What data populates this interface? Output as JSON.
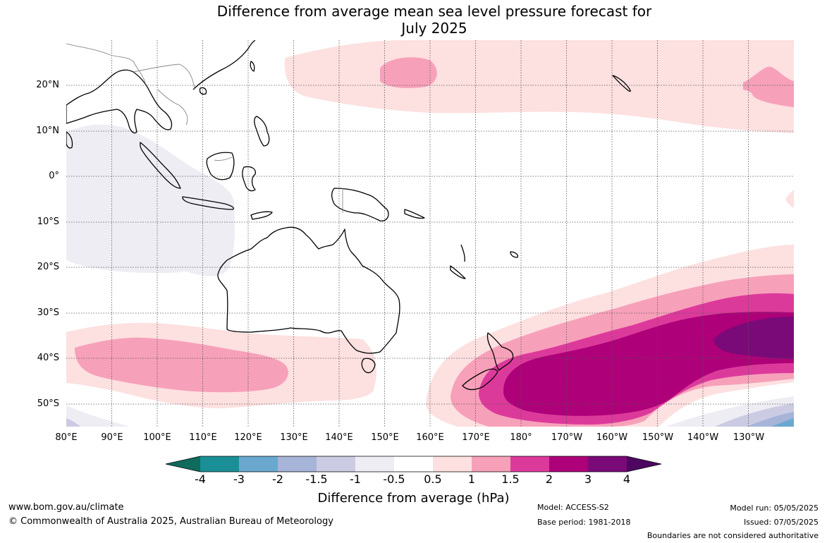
{
  "title_line1": "Difference from average mean sea level pressure forecast for",
  "title_line2": "July 2025",
  "lat_labels": [
    "20°N",
    "10°N",
    "0°",
    "10°S",
    "20°S",
    "30°S",
    "40°S",
    "50°S"
  ],
  "lon_labels": [
    "80°E",
    "90°E",
    "100°E",
    "110°E",
    "120°E",
    "130°E",
    "140°E",
    "150°E",
    "160°E",
    "170°E",
    "180°",
    "170°W",
    "160°W",
    "150°W",
    "140°W",
    "130°W"
  ],
  "colorbar": {
    "ticks": [
      "-4",
      "-3",
      "-2",
      "-1.5",
      "-1",
      "-0.5",
      "0.5",
      "1",
      "1.5",
      "2",
      "3",
      "4"
    ],
    "colors": [
      "#0e6b5e",
      "#1a9096",
      "#6aa8d0",
      "#a6b4d8",
      "#cbcbe3",
      "#efedf4",
      "#ffffff",
      "#fde0e0",
      "#f7a0ba",
      "#dc3a9b",
      "#ad0079",
      "#7a0a78",
      "#4e0760"
    ],
    "label": "Difference from average (hPa)"
  },
  "map_extent": {
    "lon": [
      80,
      240
    ],
    "lat": [
      -55,
      30
    ]
  },
  "footer": {
    "website": "www.bom.gov.au/climate",
    "copyright": "© Commonwealth of Australia 2025, Australian Bureau of Meteorology",
    "model": "Model: ACCESS-S2",
    "base_period": "Base period: 1981-2018",
    "model_run": "Model run: 05/05/2025",
    "issued": "Issued: 07/05/2025",
    "disclaimer": "Boundaries are not considered authoritative"
  }
}
